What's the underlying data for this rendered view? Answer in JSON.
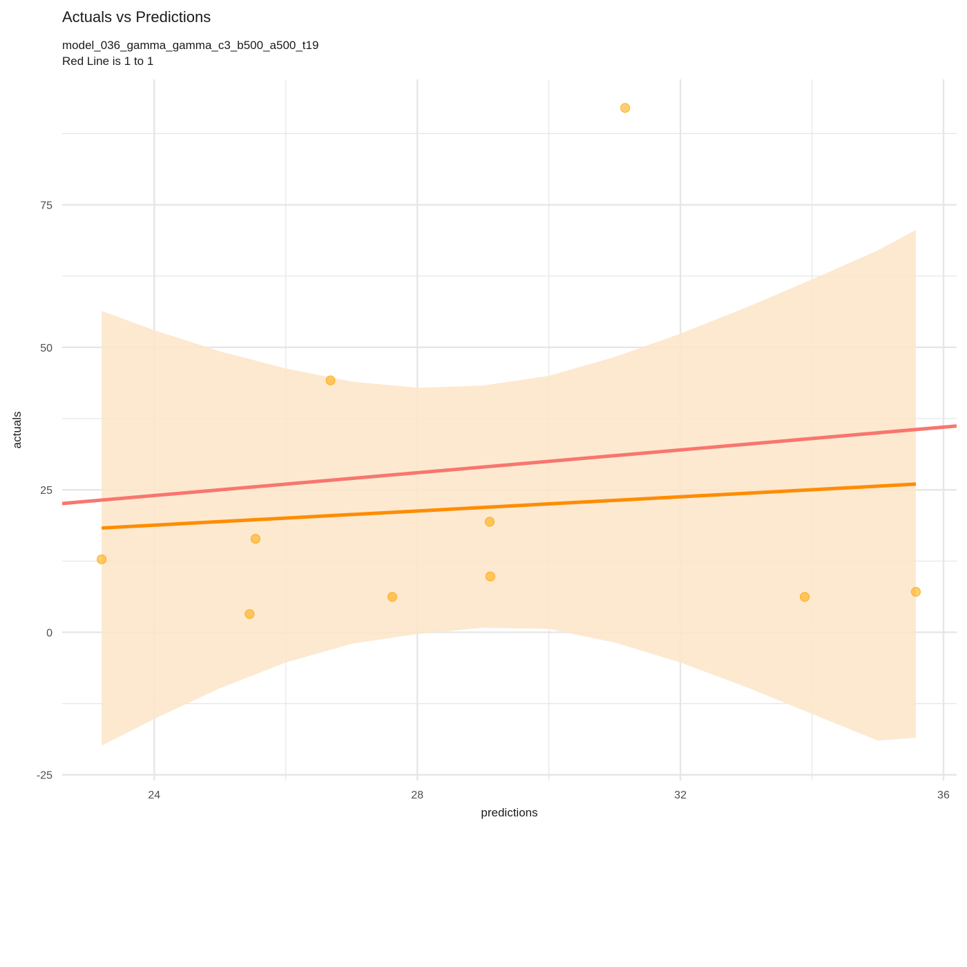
{
  "chart_data": {
    "type": "scatter",
    "title": "Actuals vs Predictions",
    "subtitle": [
      "model_036_gamma_gamma_c3_b500_a500_t19",
      "Red Line is 1 to 1"
    ],
    "xlabel": "predictions",
    "ylabel": "actuals",
    "xlim": [
      22.6,
      36.2
    ],
    "ylim": [
      -26,
      97
    ],
    "x_ticks": [
      24,
      28,
      32,
      36
    ],
    "y_ticks": [
      -25,
      0,
      25,
      50,
      75
    ],
    "grid": true,
    "points": [
      {
        "x": 23.2,
        "y": 12.8
      },
      {
        "x": 25.45,
        "y": 3.2
      },
      {
        "x": 25.54,
        "y": 16.4
      },
      {
        "x": 26.68,
        "y": 44.2
      },
      {
        "x": 27.62,
        "y": 6.2
      },
      {
        "x": 29.1,
        "y": 19.4
      },
      {
        "x": 29.11,
        "y": 9.8
      },
      {
        "x": 31.16,
        "y": 92.0
      },
      {
        "x": 33.89,
        "y": 6.2
      },
      {
        "x": 35.58,
        "y": 7.1
      }
    ],
    "fit_line": {
      "x": [
        23.2,
        35.58
      ],
      "y": [
        18.3,
        26.0
      ]
    },
    "confidence_band": {
      "x": [
        23.2,
        24.0,
        25.0,
        26.0,
        27.0,
        28.0,
        29.0,
        30.0,
        31.0,
        32.0,
        33.0,
        34.0,
        35.0,
        35.58
      ],
      "upper": [
        56.4,
        53.0,
        49.3,
        46.3,
        44.0,
        42.9,
        43.3,
        45.0,
        48.3,
        52.4,
        57.0,
        61.9,
        67.0,
        70.6
      ],
      "lower": [
        -19.9,
        -15.2,
        -9.8,
        -5.3,
        -2.0,
        -0.3,
        0.8,
        0.6,
        -1.8,
        -5.3,
        -9.6,
        -14.3,
        -19.0,
        -18.5
      ]
    },
    "identity_line": {
      "x": [
        22.6,
        36.2
      ],
      "y": [
        22.6,
        36.2
      ]
    },
    "colors": {
      "points": "#ffa500",
      "fit_line": "#ff8c00",
      "band": "#fde5c8",
      "identity_line": "#f8766d",
      "grid": "#e6e6e6"
    }
  }
}
